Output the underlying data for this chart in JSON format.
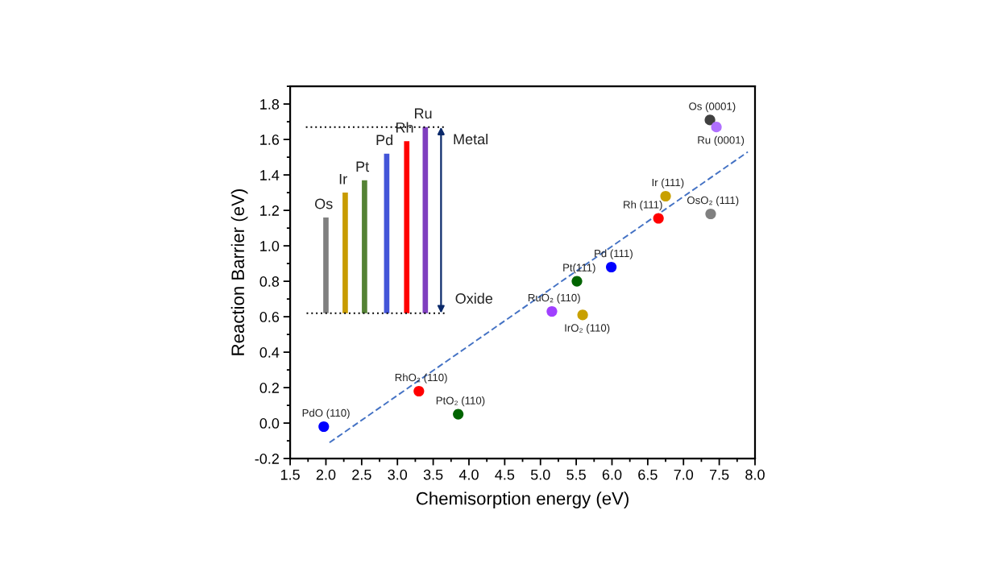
{
  "chart_data": {
    "type": "scatter",
    "xlabel": "Chemisorption energy (eV)",
    "ylabel": "Reaction Barrier (eV)",
    "xlim": [
      1.5,
      8.0
    ],
    "ylim": [
      -0.2,
      1.9
    ],
    "xticks": [
      1.5,
      {
        "value": 2,
        "label": "2.0"
      },
      2.5,
      {
        "value": 3,
        "label": "3.0"
      },
      3.5,
      {
        "value": 4,
        "label": "4.0"
      },
      4.5,
      {
        "value": 5,
        "label": "5.0"
      },
      5.5,
      {
        "value": 6,
        "label": "6.0"
      },
      6.5,
      {
        "value": 7,
        "label": "7.0"
      },
      7.5,
      {
        "value": 8,
        "label": "8.0"
      }
    ],
    "yticks": [
      {
        "value": -0.2,
        "label": "-0.2"
      },
      {
        "value": 0,
        "label": "0.0"
      },
      0.2,
      0.4,
      0.6,
      0.8,
      {
        "value": 1,
        "label": "1.0"
      },
      1.2,
      1.4,
      1.6,
      1.8
    ],
    "grid": false,
    "legend": false,
    "series": [
      {
        "type": "bar",
        "x": [
          2.0,
          2.27,
          2.54,
          2.85,
          3.13,
          3.39
        ],
        "base": [
          0.62,
          0.62,
          0.62,
          0.62,
          0.62,
          0.62
        ],
        "values": [
          0.54,
          0.68,
          0.75,
          0.9,
          0.97,
          1.05
        ],
        "colors": [
          "#808080",
          "#c89b00",
          "#548235",
          "#4355d8",
          "#ff0000",
          "#7f3fbf"
        ]
      },
      {
        "type": "line",
        "x": [
          1.72,
          3.65
        ],
        "values": [
          1.67,
          1.67
        ],
        "color": "#000000",
        "line_style": "dotted"
      },
      {
        "type": "line",
        "x": [
          1.73,
          3.68
        ],
        "values": [
          0.62,
          0.62
        ],
        "color": "#000000",
        "line_style": "dotted"
      },
      {
        "type": "line",
        "x": [
          2.05,
          7.9
        ],
        "values": [
          -0.11,
          1.53
        ],
        "color": "#4472c4",
        "line_style": "dashed"
      },
      {
        "marker": "circle",
        "x": [
          1.97,
          3.3,
          3.85,
          5.16,
          5.59,
          5.51,
          5.99,
          6.65,
          6.75,
          7.38,
          7.37,
          7.46
        ],
        "values": [
          -0.02,
          0.18,
          0.05,
          0.63,
          0.61,
          0.8,
          0.88,
          1.155,
          1.28,
          1.18,
          1.71,
          1.67
        ],
        "colors": [
          "#0000ff",
          "#ff0000",
          "#006400",
          "#a040ff",
          "#c8a000",
          "#006400",
          "#0000ff",
          "#ff0000",
          "#c8a000",
          "#808080",
          "#404040",
          "#b070ff"
        ]
      }
    ],
    "annotations": [
      {
        "text": "PdO (110)",
        "x": 1.97,
        "y": -0.02
      },
      {
        "text": "RhO₂ (110)",
        "x": 3.3,
        "y": 0.18
      },
      {
        "text": "PtO₂ (110)",
        "x": 3.85,
        "y": 0.05
      },
      {
        "text": "RuO₂ (110)",
        "x": 5.16,
        "y": 0.63
      },
      {
        "text": "IrO₂ (110)",
        "x": 5.59,
        "y": 0.61
      },
      {
        "text": "Pt(111)",
        "x": 5.51,
        "y": 0.8
      },
      {
        "text": "Pd (111)",
        "x": 5.99,
        "y": 0.88
      },
      {
        "text": "Rh (111)",
        "x": 6.65,
        "y": 1.155
      },
      {
        "text": "Ir (111)",
        "x": 6.75,
        "y": 1.28
      },
      {
        "text": "OsO₂ (111)",
        "x": 7.38,
        "y": 1.18
      },
      {
        "text": "Os (0001)",
        "x": 7.37,
        "y": 1.71
      },
      {
        "text": "Ru (0001)",
        "x": 7.46,
        "y": 1.67
      },
      {
        "text": "Os",
        "x": 2.0,
        "y": 1.16
      },
      {
        "text": "Ir",
        "x": 2.27,
        "y": 1.3
      },
      {
        "text": "Pt",
        "x": 2.54,
        "y": 1.37
      },
      {
        "text": "Pd",
        "x": 2.85,
        "y": 1.52
      },
      {
        "text": "Rh",
        "x": 3.13,
        "y": 1.59
      },
      {
        "text": "Ru",
        "x": 3.39,
        "y": 1.67
      },
      {
        "text": "Metal",
        "x": 3.65,
        "y": 1.67
      },
      {
        "text": "Oxide",
        "x": 3.68,
        "y": 0.62
      }
    ]
  }
}
